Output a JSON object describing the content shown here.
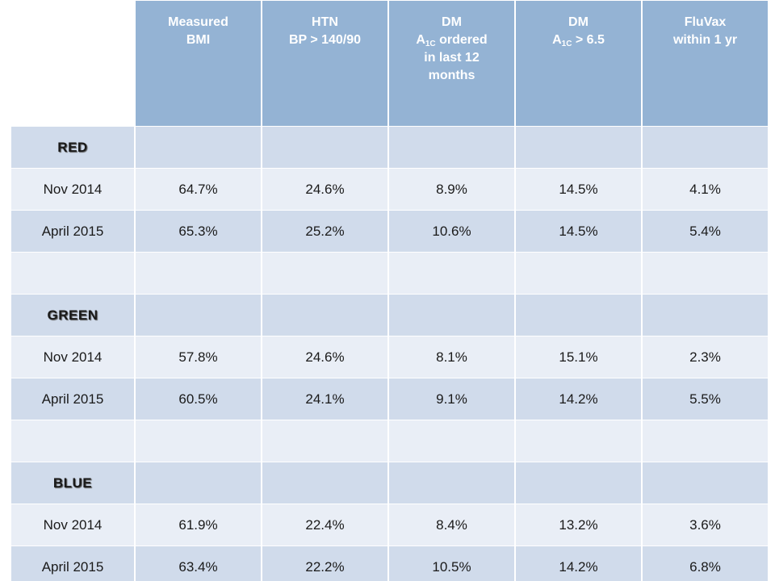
{
  "table": {
    "headers": [
      {
        "lines": [
          "Measured",
          "BMI"
        ]
      },
      {
        "lines": [
          "HTN",
          "BP > 140/90"
        ]
      },
      {
        "lines": [
          "DM"
        ],
        "a1c_main": "A",
        "a1c_sub": "1C",
        "a1c_rest": " ordered",
        "more_lines": [
          "in last 12",
          "months"
        ]
      },
      {
        "lines": [
          "DM"
        ],
        "a1c_main": "A",
        "a1c_sub": "1C",
        "a1c_rest": " > 6.5",
        "more_lines": []
      },
      {
        "lines": [
          "FluVax",
          "within 1 yr"
        ]
      }
    ],
    "groups": [
      {
        "label": "RED",
        "color": "#e51f1f",
        "rows": [
          {
            "period": "Nov 2014",
            "values": [
              "64.7%",
              "24.6%",
              "8.9%",
              "14.5%",
              "4.1%"
            ]
          },
          {
            "period": "April 2015",
            "values": [
              "65.3%",
              "25.2%",
              "10.6%",
              "14.5%",
              "5.4%"
            ]
          }
        ]
      },
      {
        "label": "GREEN",
        "color": "#2ea52e",
        "rows": [
          {
            "period": "Nov 2014",
            "values": [
              "57.8%",
              "24.6%",
              "8.1%",
              "15.1%",
              "2.3%"
            ]
          },
          {
            "period": "April 2015",
            "values": [
              "60.5%",
              "24.1%",
              "9.1%",
              "14.2%",
              "5.5%"
            ]
          }
        ]
      },
      {
        "label": "BLUE",
        "color": "#1e2ea8",
        "rows": [
          {
            "period": "Nov 2014",
            "values": [
              "61.9%",
              "22.4%",
              "8.4%",
              "13.2%",
              "3.6%"
            ]
          },
          {
            "period": "April 2015",
            "values": [
              "63.4%",
              "22.2%",
              "10.5%",
              "14.2%",
              "6.8%"
            ]
          }
        ]
      }
    ]
  }
}
